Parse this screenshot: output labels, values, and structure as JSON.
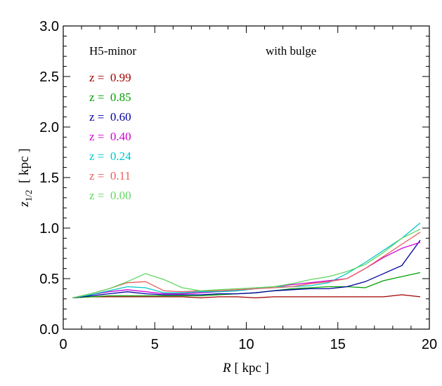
{
  "chart_data": {
    "type": "line",
    "xlabel": {
      "var": "R",
      "unit": " [ kpc ]"
    },
    "ylabel": {
      "var": "z",
      "sub": "1/2",
      "unit": "  [ kpc ]"
    },
    "xlim": [
      0,
      20
    ],
    "ylim": [
      0,
      3
    ],
    "xticks": [
      0,
      5,
      10,
      15,
      20
    ],
    "yticks": [
      0.0,
      0.5,
      1.0,
      1.5,
      2.0,
      2.5,
      3.0
    ],
    "annotations": {
      "left": "H5-minor",
      "right": "with bulge"
    },
    "grid": false,
    "legend_position": "top-left",
    "x": [
      0.5,
      1.5,
      2.5,
      3.5,
      4.5,
      5.5,
      6.5,
      7.5,
      8.5,
      9.5,
      10.5,
      11.5,
      12.5,
      13.5,
      14.5,
      15.5,
      16.5,
      17.5,
      18.5,
      19.5
    ],
    "series": [
      {
        "name": "z =  0.99",
        "color": "#a00000",
        "values": [
          0.31,
          0.32,
          0.32,
          0.32,
          0.32,
          0.32,
          0.32,
          0.31,
          0.32,
          0.32,
          0.31,
          0.32,
          0.32,
          0.32,
          0.32,
          0.32,
          0.32,
          0.32,
          0.34,
          0.32
        ]
      },
      {
        "name": "z =  0.85",
        "color": "#00a000",
        "values": [
          0.31,
          0.32,
          0.33,
          0.33,
          0.33,
          0.33,
          0.33,
          0.33,
          0.34,
          0.35,
          0.36,
          0.38,
          0.4,
          0.41,
          0.42,
          0.42,
          0.41,
          0.48,
          0.52,
          0.56
        ]
      },
      {
        "name": "z =  0.60",
        "color": "#0000a0",
        "values": [
          0.31,
          0.33,
          0.35,
          0.37,
          0.35,
          0.34,
          0.34,
          0.34,
          0.35,
          0.35,
          0.36,
          0.38,
          0.39,
          0.4,
          0.4,
          0.42,
          0.47,
          0.55,
          0.63,
          0.88
        ]
      },
      {
        "name": "z =  0.40",
        "color": "#d000d0",
        "values": [
          0.31,
          0.34,
          0.37,
          0.39,
          0.37,
          0.35,
          0.35,
          0.36,
          0.37,
          0.38,
          0.4,
          0.42,
          0.44,
          0.46,
          0.48,
          0.5,
          0.6,
          0.71,
          0.8,
          0.86
        ]
      },
      {
        "name": "z =  0.24",
        "color": "#00c8c8",
        "values": [
          0.31,
          0.34,
          0.38,
          0.42,
          0.41,
          0.36,
          0.36,
          0.37,
          0.37,
          0.38,
          0.4,
          0.42,
          0.42,
          0.43,
          0.46,
          0.55,
          0.66,
          0.78,
          0.9,
          1.05
        ]
      },
      {
        "name": "z =  0.11",
        "color": "#e86060",
        "values": [
          0.31,
          0.35,
          0.4,
          0.46,
          0.47,
          0.38,
          0.37,
          0.38,
          0.38,
          0.39,
          0.4,
          0.41,
          0.42,
          0.45,
          0.47,
          0.5,
          0.6,
          0.72,
          0.84,
          0.96
        ]
      },
      {
        "name": "z =  0.00",
        "color": "#60d860",
        "values": [
          0.31,
          0.35,
          0.4,
          0.47,
          0.55,
          0.49,
          0.41,
          0.38,
          0.39,
          0.4,
          0.41,
          0.42,
          0.45,
          0.49,
          0.52,
          0.57,
          0.64,
          0.76,
          0.9,
          0.99
        ]
      }
    ]
  }
}
